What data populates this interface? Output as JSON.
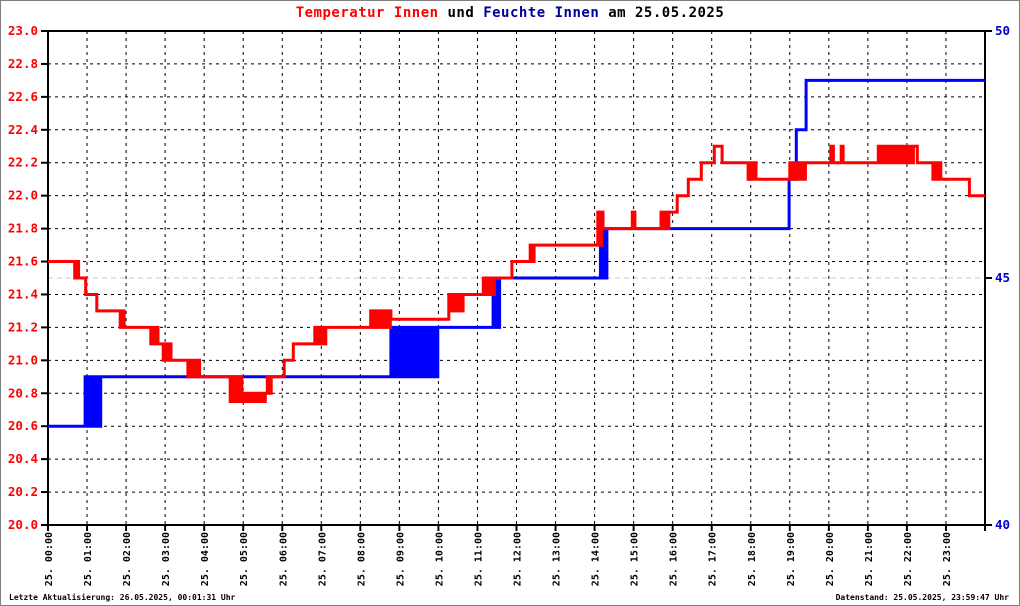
{
  "title": {
    "temp_label": "Temperatur Innen",
    "connector": " und ",
    "hum_label": "Feuchte Innen",
    "date_suffix": " am 25.05.2025"
  },
  "footer": {
    "last_update": "Letzte Aktualisierung: 26.05.2025, 00:01:31 Uhr",
    "data_state": "Datenstand: 25.05.2025, 23:59:47 Uhr"
  },
  "colors": {
    "temp_red": "#ff0000",
    "hum_blue": "#0000ff",
    "title_blue": "#000099",
    "left_axis_label": "#ff0000",
    "right_axis_label": "#0000cc",
    "grid_black": "#000000",
    "grid_gray": "#c8c8c8",
    "frame": "#000000"
  },
  "chart_data": {
    "type": "line",
    "title": "Temperatur Innen und Feuchte Innen am 25.05.2025",
    "grid": "dashed, vertical each hour, horizontal each 0.2 degC, light gray line at 45% humidity",
    "legend_position": "none",
    "x_axis": {
      "range_minutes": [
        0,
        1440
      ],
      "tick_every_minutes": 60,
      "tick_labels": [
        "25. 00:00",
        "25. 01:00",
        "25. 02:00",
        "25. 03:00",
        "25. 04:00",
        "25. 05:00",
        "25. 06:00",
        "25. 07:00",
        "25. 08:00",
        "25. 09:00",
        "25. 10:00",
        "25. 11:00",
        "25. 12:00",
        "25. 13:00",
        "25. 14:00",
        "25. 15:00",
        "25. 16:00",
        "25. 17:00",
        "25. 18:00",
        "25. 19:00",
        "25. 20:00",
        "25. 21:00",
        "25. 22:00",
        "25. 23:00"
      ]
    },
    "y_left": {
      "name": "Temperatur",
      "min": 20.0,
      "max": 23.0,
      "step": 0.2,
      "tick_labels": [
        "20.0",
        "20.2",
        "20.4",
        "20.6",
        "20.8",
        "21.0",
        "21.2",
        "21.4",
        "21.6",
        "21.8",
        "22.0",
        "22.2",
        "22.4",
        "22.6",
        "22.8",
        "23.0"
      ]
    },
    "y_right": {
      "name": "Feuchte",
      "min": 40,
      "max": 50,
      "tick_labels": [
        "40",
        "45",
        "50"
      ],
      "gray_gridline_value": 45
    },
    "series": [
      {
        "name": "Temperatur Innen",
        "axis": "left",
        "color": "#ff0000",
        "segments": [
          [
            "hold",
            0,
            38,
            21.6
          ],
          [
            "toggle",
            38,
            50,
            21.5,
            21.6
          ],
          [
            "hold",
            50,
            58,
            21.5
          ],
          [
            "hold",
            58,
            75,
            21.4
          ],
          [
            "hold",
            75,
            108,
            21.3
          ],
          [
            "toggle",
            108,
            118,
            21.2,
            21.3
          ],
          [
            "hold",
            118,
            155,
            21.2
          ],
          [
            "toggle",
            155,
            169,
            21.1,
            21.2
          ],
          [
            "hold",
            169,
            174,
            21.1
          ],
          [
            "toggle",
            174,
            192,
            21.0,
            21.1
          ],
          [
            "hold",
            192,
            212,
            21.0
          ],
          [
            "toggle",
            212,
            235,
            20.9,
            21.0
          ],
          [
            "hold",
            235,
            277,
            20.9
          ],
          [
            "toggle",
            277,
            300,
            20.75,
            20.9
          ],
          [
            "toggle",
            300,
            334,
            20.75,
            20.8
          ],
          [
            "toggle",
            334,
            343,
            20.8,
            20.9
          ],
          [
            "hold",
            343,
            363,
            20.9
          ],
          [
            "hold",
            363,
            377,
            21.0
          ],
          [
            "hold",
            377,
            407,
            21.1
          ],
          [
            "toggle",
            407,
            427,
            21.1,
            21.2
          ],
          [
            "hold",
            427,
            493,
            21.2
          ],
          [
            "toggle",
            493,
            527,
            21.2,
            21.3
          ],
          [
            "hold",
            527,
            616,
            21.25
          ],
          [
            "toggle",
            616,
            638,
            21.3,
            21.4
          ],
          [
            "hold",
            638,
            666,
            21.4
          ],
          [
            "toggle",
            666,
            686,
            21.4,
            21.5
          ],
          [
            "hold",
            686,
            713,
            21.5
          ],
          [
            "hold",
            713,
            738,
            21.6
          ],
          [
            "toggle",
            738,
            747,
            21.6,
            21.7
          ],
          [
            "hold",
            747,
            842,
            21.7
          ],
          [
            "toggle",
            842,
            853,
            21.7,
            21.9
          ],
          [
            "hold",
            853,
            898,
            21.8
          ],
          [
            "hold",
            898,
            902,
            21.9
          ],
          [
            "hold",
            902,
            939,
            21.8
          ],
          [
            "toggle",
            939,
            954,
            21.8,
            21.9
          ],
          [
            "hold",
            954,
            967,
            21.9
          ],
          [
            "hold",
            967,
            984,
            22.0
          ],
          [
            "hold",
            984,
            1004,
            22.1
          ],
          [
            "hold",
            1004,
            1024,
            22.2
          ],
          [
            "hold",
            1024,
            1036,
            22.3
          ],
          [
            "hold",
            1036,
            1073,
            22.2
          ],
          [
            "toggle",
            1073,
            1088,
            22.1,
            22.2
          ],
          [
            "hold",
            1088,
            1137,
            22.1
          ],
          [
            "toggle",
            1137,
            1164,
            22.1,
            22.2
          ],
          [
            "hold",
            1164,
            1203,
            22.2
          ],
          [
            "hold",
            1203,
            1207,
            22.3
          ],
          [
            "hold",
            1207,
            1219,
            22.2
          ],
          [
            "hold",
            1219,
            1222,
            22.3
          ],
          [
            "hold",
            1222,
            1273,
            22.2
          ],
          [
            "toggle",
            1273,
            1326,
            22.2,
            22.3
          ],
          [
            "hold",
            1326,
            1330,
            22.2
          ],
          [
            "hold",
            1330,
            1336,
            22.3
          ],
          [
            "hold",
            1336,
            1357,
            22.2
          ],
          [
            "toggle",
            1357,
            1373,
            22.1,
            22.2
          ],
          [
            "hold",
            1373,
            1416,
            22.1
          ],
          [
            "hold",
            1416,
            1440,
            22.0
          ]
        ]
      },
      {
        "name": "Feuchte Innen",
        "axis": "right",
        "color": "#0000ff",
        "segments": [
          [
            "hold",
            0,
            54,
            42
          ],
          [
            "toggle",
            54,
            82,
            42,
            43
          ],
          [
            "hold",
            82,
            524,
            43
          ],
          [
            "toggle",
            524,
            600,
            43,
            44
          ],
          [
            "hold",
            600,
            681,
            44
          ],
          [
            "toggle",
            681,
            694,
            44,
            45
          ],
          [
            "hold",
            694,
            846,
            45
          ],
          [
            "toggle",
            846,
            859,
            45,
            46
          ],
          [
            "hold",
            859,
            1139,
            46
          ],
          [
            "hold",
            1139,
            1150,
            47
          ],
          [
            "hold",
            1150,
            1165,
            48
          ],
          [
            "hold",
            1165,
            1440,
            49
          ]
        ]
      }
    ]
  }
}
